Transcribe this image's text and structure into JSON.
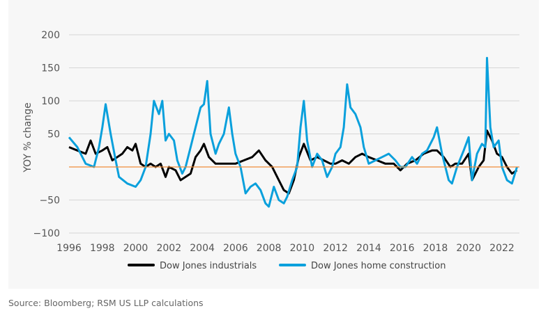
{
  "chart_data": {
    "type": "line",
    "ylabel": "YOY % change",
    "xlabel": "",
    "xlim": [
      1996,
      2022.9
    ],
    "ylim": [
      -100,
      200
    ],
    "xticks": [
      "1996",
      "1998",
      "2000",
      "2002",
      "2004",
      "2006",
      "2008",
      "2010",
      "2012",
      "2014",
      "2016",
      "2018",
      "2020",
      "2022"
    ],
    "yticks": [
      "200",
      "150",
      "100",
      "50",
      "",
      "−50",
      "−100"
    ],
    "ytick_values": [
      200,
      150,
      100,
      50,
      0,
      -50,
      -100
    ],
    "grid": true,
    "legend_position": "bottom",
    "reference_line": {
      "y": 0,
      "color": "#f08c3a"
    },
    "series": [
      {
        "name": "Dow Jones industrials",
        "color": "#000000",
        "x": [
          1996,
          1996.5,
          1997,
          1997.3,
          1997.6,
          1998,
          1998.3,
          1998.6,
          1998.9,
          1999.2,
          1999.5,
          1999.8,
          2000,
          2000.3,
          2000.6,
          2000.9,
          2001.2,
          2001.5,
          2001.8,
          2002,
          2002.4,
          2002.7,
          2003,
          2003.3,
          2003.6,
          2003.9,
          2004.1,
          2004.4,
          2004.8,
          2005.2,
          2005.6,
          2006,
          2006.5,
          2007,
          2007.4,
          2007.8,
          2008.2,
          2008.6,
          2008.9,
          2009.2,
          2009.5,
          2009.8,
          2010.1,
          2010.5,
          2010.9,
          2011.3,
          2011.7,
          2012,
          2012.4,
          2012.8,
          2013.2,
          2013.6,
          2014,
          2014.5,
          2015,
          2015.5,
          2015.9,
          2016.3,
          2016.8,
          2017.3,
          2017.8,
          2018.1,
          2018.5,
          2018.9,
          2019.2,
          2019.6,
          2020,
          2020.2,
          2020.6,
          2020.9,
          2021.1,
          2021.4,
          2021.7,
          2022,
          2022.3,
          2022.6,
          2022.9
        ],
        "y": [
          30,
          25,
          20,
          40,
          20,
          25,
          30,
          10,
          15,
          20,
          30,
          25,
          35,
          5,
          0,
          5,
          0,
          5,
          -15,
          0,
          -5,
          -20,
          -15,
          -10,
          15,
          25,
          35,
          15,
          5,
          5,
          5,
          5,
          10,
          15,
          25,
          10,
          0,
          -20,
          -35,
          -40,
          -20,
          15,
          35,
          10,
          15,
          10,
          5,
          5,
          10,
          5,
          15,
          20,
          15,
          10,
          5,
          5,
          -5,
          5,
          10,
          20,
          25,
          25,
          15,
          0,
          5,
          5,
          20,
          -20,
          0,
          10,
          55,
          40,
          20,
          15,
          0,
          -10,
          -5
        ]
      },
      {
        "name": "Dow Jones home construction",
        "color": "#0aa0dc",
        "x": [
          1996,
          1996.5,
          1997,
          1997.5,
          1997.8,
          1998,
          1998.2,
          1998.5,
          1998.8,
          1999,
          1999.5,
          2000,
          2000.3,
          2000.6,
          2000.9,
          2001.1,
          2001.4,
          2001.6,
          2001.8,
          2002,
          2002.3,
          2002.5,
          2002.8,
          2003,
          2003.3,
          2003.6,
          2003.9,
          2004.1,
          2004.3,
          2004.5,
          2004.8,
          2005,
          2005.3,
          2005.6,
          2005.8,
          2006,
          2006.3,
          2006.6,
          2006.9,
          2007.2,
          2007.5,
          2007.8,
          2008,
          2008.3,
          2008.6,
          2008.9,
          2009.1,
          2009.4,
          2009.7,
          2009.9,
          2010.1,
          2010.3,
          2010.6,
          2010.9,
          2011.2,
          2011.5,
          2011.8,
          2012,
          2012.3,
          2012.5,
          2012.7,
          2012.9,
          2013.2,
          2013.5,
          2013.7,
          2014,
          2014.4,
          2014.8,
          2015.2,
          2015.6,
          2015.9,
          2016.2,
          2016.6,
          2016.9,
          2017.2,
          2017.5,
          2017.9,
          2018.1,
          2018.4,
          2018.8,
          2019,
          2019.3,
          2019.7,
          2020,
          2020.2,
          2020.5,
          2020.8,
          2021,
          2021.1,
          2021.3,
          2021.5,
          2021.8,
          2022,
          2022.3,
          2022.6,
          2022.9
        ],
        "y": [
          45,
          30,
          5,
          0,
          30,
          60,
          95,
          50,
          10,
          -15,
          -25,
          -30,
          -20,
          0,
          50,
          100,
          80,
          100,
          40,
          50,
          40,
          10,
          -10,
          0,
          30,
          60,
          90,
          95,
          130,
          50,
          20,
          35,
          50,
          90,
          50,
          20,
          0,
          -40,
          -30,
          -25,
          -35,
          -55,
          -60,
          -30,
          -50,
          -55,
          -45,
          -20,
          0,
          60,
          100,
          40,
          0,
          20,
          10,
          -15,
          0,
          20,
          30,
          60,
          125,
          90,
          80,
          60,
          30,
          5,
          10,
          15,
          20,
          10,
          0,
          0,
          15,
          5,
          20,
          25,
          45,
          60,
          20,
          -20,
          -25,
          0,
          25,
          45,
          -20,
          20,
          35,
          30,
          165,
          60,
          30,
          40,
          0,
          -20,
          -25,
          0
        ]
      }
    ]
  },
  "source": "Source: Bloomberg; RSM US LLP calculations"
}
